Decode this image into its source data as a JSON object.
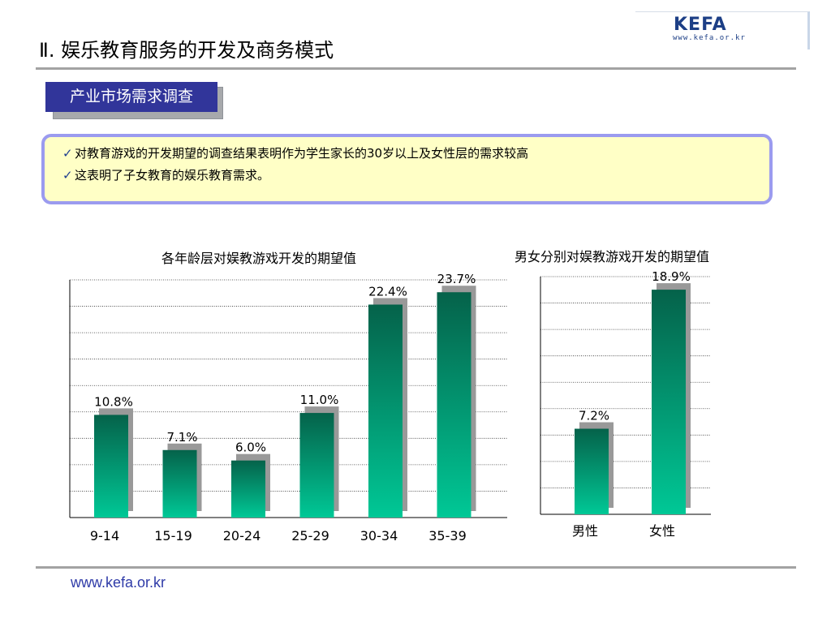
{
  "header": {
    "logo_text": "KEFA",
    "logo_url": "www.kefa.or.kr",
    "title": "Ⅱ. 娱乐教育服务的开发及商务模式"
  },
  "section": {
    "tag": "产业市场需求调查"
  },
  "note": {
    "check_icon": "check-icon",
    "lines": [
      "对教育游戏的开发期望的调查结果表明作为学生家长的30岁以上及女性层的需求较高",
      "这表明了子女教育的娱乐教育需求。"
    ]
  },
  "chart_data": [
    {
      "type": "bar",
      "title": "各年龄层对娱教游戏开发的期望值",
      "categories": [
        "9-14",
        "15-19",
        "20-24",
        "25-29",
        "30-34",
        "35-39"
      ],
      "values": [
        10.8,
        7.1,
        6.0,
        11.0,
        22.4,
        23.7
      ],
      "data_labels": [
        "10.8%",
        "7.1%",
        "6.0%",
        "11.0%",
        "22.4%",
        "23.7%"
      ],
      "ylim": [
        0,
        25
      ],
      "grid": true,
      "legend": "none",
      "colors": {
        "bar_top": "#05624a",
        "bar_bottom": "#00c896",
        "shadow": "#999999"
      }
    },
    {
      "type": "bar",
      "title": "男女分别对娱教游戏开发的期望值",
      "categories": [
        "男性",
        "女性"
      ],
      "values": [
        7.2,
        18.9
      ],
      "data_labels": [
        "7.2%",
        "18.9%"
      ],
      "ylim": [
        0,
        20
      ],
      "grid": true,
      "legend": "none",
      "colors": {
        "bar_top": "#05624a",
        "bar_bottom": "#00c896",
        "shadow": "#999999"
      }
    }
  ],
  "footer": {
    "url": "www.kefa.or.kr"
  }
}
